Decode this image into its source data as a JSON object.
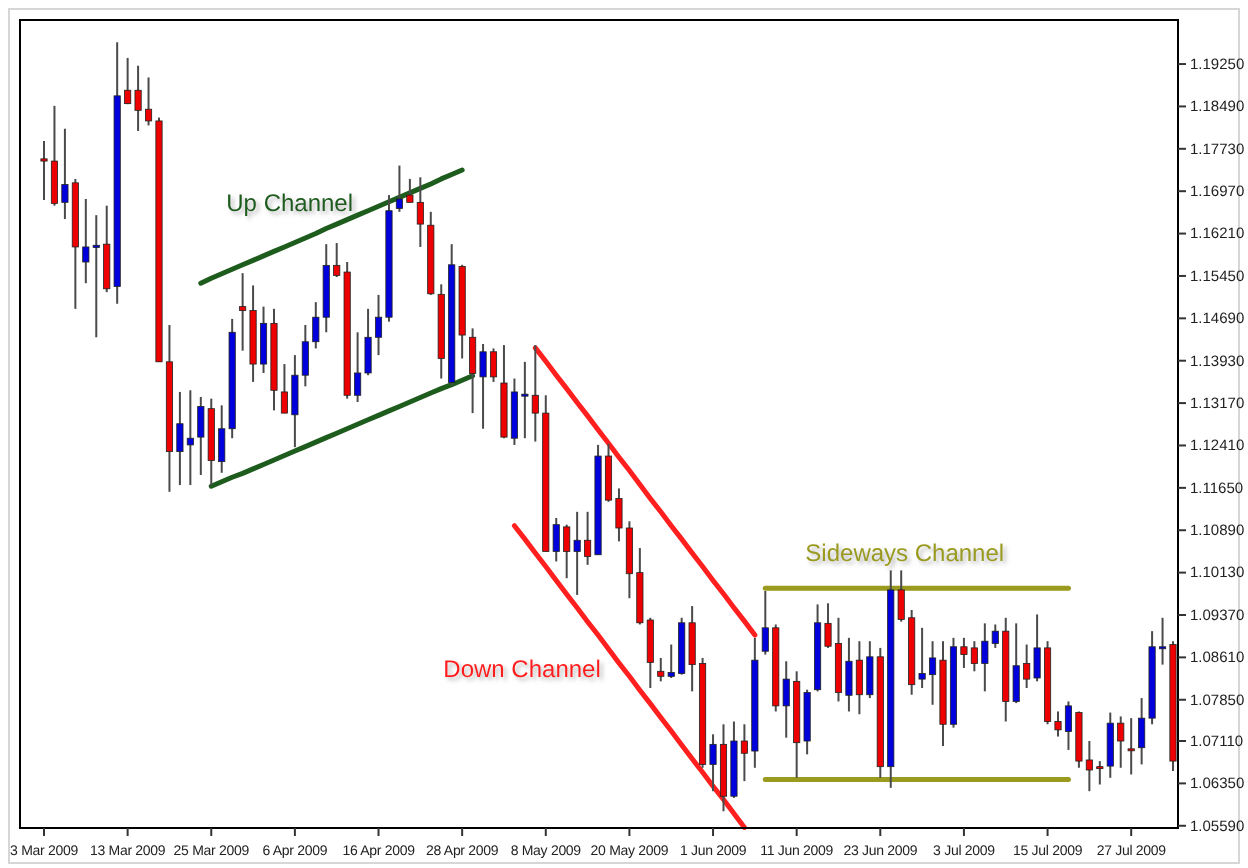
{
  "chart_data": {
    "type": "candlestick",
    "categories": [
      "3 Mar 2009",
      null,
      null,
      null,
      null,
      null,
      null,
      null,
      "13 Mar 2009",
      null,
      null,
      null,
      null,
      null,
      null,
      null,
      "25 Mar 2009",
      null,
      null,
      null,
      null,
      null,
      null,
      null,
      "6 Apr 2009",
      null,
      null,
      null,
      null,
      null,
      null,
      null,
      "16 Apr 2009",
      null,
      null,
      null,
      null,
      null,
      null,
      null,
      "28 Apr 2009",
      null,
      null,
      null,
      null,
      null,
      null,
      null,
      "8 May 2009",
      null,
      null,
      null,
      null,
      null,
      null,
      null,
      "20 May 2009",
      null,
      null,
      null,
      null,
      null,
      null,
      null,
      "1 Jun 2009",
      null,
      null,
      null,
      null,
      null,
      null,
      null,
      "11 Jun 2009",
      null,
      null,
      null,
      null,
      null,
      null,
      null,
      "23 Jun 2009",
      null,
      null,
      null,
      null,
      null,
      null,
      null,
      "3 Jul 2009",
      null,
      null,
      null,
      null,
      null,
      null,
      null,
      "15 Jul 2009",
      null,
      null,
      null,
      null,
      null,
      null,
      null,
      "27 Jul 2009",
      null,
      null,
      null,
      null
    ],
    "ylim": [
      1.0555,
      1.2004
    ],
    "yticks": [
      {
        "value": 1.0559,
        "label": "1.05590"
      },
      {
        "value": 1.0635,
        "label": "1.06350"
      },
      {
        "value": 1.0711,
        "label": "1.07110"
      },
      {
        "value": 1.0785,
        "label": "1.07850"
      },
      {
        "value": 1.0861,
        "label": "1.08610"
      },
      {
        "value": 1.0937,
        "label": "1.09370"
      },
      {
        "value": 1.1013,
        "label": "1.10130"
      },
      {
        "value": 1.1089,
        "label": "1.10890"
      },
      {
        "value": 1.1165,
        "label": "1.11650"
      },
      {
        "value": 1.1241,
        "label": "1.12410"
      },
      {
        "value": 1.1317,
        "label": "1.13170"
      },
      {
        "value": 1.1393,
        "label": "1.13930"
      },
      {
        "value": 1.1469,
        "label": "1.14690"
      },
      {
        "value": 1.1545,
        "label": "1.15450"
      },
      {
        "value": 1.1621,
        "label": "1.16210"
      },
      {
        "value": 1.1697,
        "label": "1.16970"
      },
      {
        "value": 1.1773,
        "label": "1.17730"
      },
      {
        "value": 1.1849,
        "label": "1.18490"
      },
      {
        "value": 1.1925,
        "label": "1.19250"
      }
    ],
    "series": [
      {
        "ohlc": [
          [
            1.1755,
            1.1787,
            1.1681,
            1.1751
          ],
          [
            1.1751,
            1.185,
            1.1671,
            1.1675
          ],
          [
            1.1677,
            1.1809,
            1.1647,
            1.1709
          ],
          [
            1.1712,
            1.1719,
            1.1486,
            1.1597
          ],
          [
            1.157,
            1.1683,
            1.1532,
            1.1597
          ],
          [
            1.1596,
            1.1654,
            1.1435,
            1.16
          ],
          [
            1.1602,
            1.1671,
            1.1516,
            1.1522
          ],
          [
            1.1526,
            1.1964,
            1.1495,
            1.1868
          ],
          [
            1.1878,
            1.1936,
            1.1853,
            1.1854
          ],
          [
            1.1878,
            1.1922,
            1.1805,
            1.1842
          ],
          [
            1.1844,
            1.1901,
            1.1815,
            1.1823
          ],
          [
            1.1823,
            1.1829,
            1.1391,
            1.1391
          ],
          [
            1.1391,
            1.1457,
            1.1158,
            1.123
          ],
          [
            1.123,
            1.1337,
            1.117,
            1.128
          ],
          [
            1.1242,
            1.134,
            1.117,
            1.1254
          ],
          [
            1.1256,
            1.1328,
            1.1188,
            1.1311
          ],
          [
            1.1307,
            1.1325,
            1.117,
            1.1214
          ],
          [
            1.1212,
            1.1313,
            1.1192,
            1.1271
          ],
          [
            1.1271,
            1.1468,
            1.1254,
            1.1444
          ],
          [
            1.149,
            1.155,
            1.1411,
            1.1483
          ],
          [
            1.1483,
            1.1528,
            1.1355,
            1.1387
          ],
          [
            1.1387,
            1.149,
            1.1371,
            1.146
          ],
          [
            1.146,
            1.1486,
            1.1304,
            1.134
          ],
          [
            1.1337,
            1.1387,
            1.1299,
            1.1299
          ],
          [
            1.1296,
            1.1403,
            1.1238,
            1.1367
          ],
          [
            1.1367,
            1.1457,
            1.1347,
            1.1427
          ],
          [
            1.1427,
            1.1498,
            1.1415,
            1.1471
          ],
          [
            1.1471,
            1.1602,
            1.1444,
            1.1564
          ],
          [
            1.1564,
            1.1604,
            1.1543,
            1.1546
          ],
          [
            1.1552,
            1.157,
            1.1325,
            1.1331
          ],
          [
            1.1331,
            1.1444,
            1.1319,
            1.1371
          ],
          [
            1.1371,
            1.1486,
            1.1367,
            1.1435
          ],
          [
            1.1435,
            1.1511,
            1.1403,
            1.1471
          ],
          [
            1.1471,
            1.169,
            1.1463,
            1.1662
          ],
          [
            1.1666,
            1.1743,
            1.166,
            1.1683
          ],
          [
            1.169,
            1.1719,
            1.1677,
            1.1677
          ],
          [
            1.1677,
            1.1722,
            1.1597,
            1.1638
          ],
          [
            1.1636,
            1.166,
            1.1511,
            1.1513
          ],
          [
            1.1512,
            1.153,
            1.1361,
            1.1397
          ],
          [
            1.1354,
            1.1602,
            1.1349,
            1.1565
          ],
          [
            1.1562,
            1.1565,
            1.1397,
            1.1439
          ],
          [
            1.1435,
            1.1451,
            1.1299,
            1.137
          ],
          [
            1.1364,
            1.1423,
            1.1271,
            1.1409
          ],
          [
            1.1409,
            1.1415,
            1.1355,
            1.1364
          ],
          [
            1.1353,
            1.1421,
            1.1254,
            1.1256
          ],
          [
            1.1254,
            1.1361,
            1.1242,
            1.1337
          ],
          [
            1.1331,
            1.1391,
            1.1254,
            1.1333
          ],
          [
            1.1331,
            1.1421,
            1.1248,
            1.1299
          ],
          [
            1.1299,
            1.1331,
            1.1051,
            1.1051
          ],
          [
            1.1051,
            1.1111,
            1.1033,
            1.1099
          ],
          [
            1.1095,
            1.1099,
            1.1003,
            1.1051
          ],
          [
            1.1051,
            1.1122,
            1.0973,
            1.1071
          ],
          [
            1.1071,
            1.1122,
            1.1027,
            1.1042
          ],
          [
            1.1045,
            1.1242,
            1.1045,
            1.1222
          ],
          [
            1.1222,
            1.1244,
            1.114,
            1.1143
          ],
          [
            1.1146,
            1.1164,
            1.1069,
            1.1093
          ],
          [
            1.1093,
            1.1105,
            1.0967,
            1.1011
          ],
          [
            1.1013,
            1.1057,
            1.092,
            1.0923
          ],
          [
            1.0928,
            1.0932,
            1.0806,
            1.0852
          ],
          [
            1.0836,
            1.086,
            1.0818,
            1.0827
          ],
          [
            1.0827,
            1.0884,
            1.0824,
            1.0834
          ],
          [
            1.0832,
            1.0932,
            1.083,
            1.0923
          ],
          [
            1.0923,
            1.0953,
            1.08,
            1.0848
          ],
          [
            1.085,
            1.086,
            1.0663,
            1.0669
          ],
          [
            1.0669,
            1.0723,
            1.0621,
            1.0705
          ],
          [
            1.0705,
            1.0741,
            1.0585,
            1.0612
          ],
          [
            1.0612,
            1.0746,
            1.0609,
            1.0711
          ],
          [
            1.0711,
            1.0741,
            1.0639,
            1.0689
          ],
          [
            1.0693,
            1.0896,
            1.0663,
            1.0856
          ],
          [
            1.0872,
            1.098,
            1.0866,
            1.0914
          ],
          [
            1.0914,
            1.092,
            1.0764,
            1.0774
          ],
          [
            1.0774,
            1.0854,
            1.0717,
            1.0822
          ],
          [
            1.0818,
            1.0836,
            1.0645,
            1.0708
          ],
          [
            1.0711,
            1.0803,
            1.0687,
            1.0798
          ],
          [
            1.0803,
            1.0956,
            1.08,
            1.0923
          ],
          [
            1.0922,
            1.0958,
            1.0878,
            1.0881
          ],
          [
            1.0886,
            1.0932,
            1.0782,
            1.0798
          ],
          [
            1.0793,
            1.0896,
            1.0764,
            1.0854
          ],
          [
            1.0856,
            1.089,
            1.0759,
            1.0794
          ],
          [
            1.0794,
            1.089,
            1.0788,
            1.0862
          ],
          [
            1.0862,
            1.0878,
            1.0645,
            1.0665
          ],
          [
            1.0665,
            1.1017,
            1.0627,
            1.0982
          ],
          [
            1.0982,
            1.1017,
            1.0925,
            1.0929
          ],
          [
            1.0932,
            1.0946,
            1.0794,
            1.0812
          ],
          [
            1.0822,
            1.0914,
            1.0806,
            1.0832
          ],
          [
            1.083,
            1.089,
            1.0776,
            1.086
          ],
          [
            1.0856,
            1.089,
            1.0702,
            1.0741
          ],
          [
            1.0741,
            1.0896,
            1.0735,
            1.088
          ],
          [
            1.088,
            1.0896,
            1.0842,
            1.0866
          ],
          [
            1.0878,
            1.089,
            1.0836,
            1.085
          ],
          [
            1.085,
            1.0922,
            1.08,
            1.089
          ],
          [
            1.0886,
            1.092,
            1.0878,
            1.0908
          ],
          [
            1.0908,
            1.0932,
            1.0746,
            1.0782
          ],
          [
            1.0782,
            1.0922,
            1.0779,
            1.0846
          ],
          [
            1.085,
            1.0884,
            1.0806,
            1.0822
          ],
          [
            1.0824,
            1.0938,
            1.0818,
            1.0878
          ],
          [
            1.0878,
            1.089,
            1.0741,
            1.0746
          ],
          [
            1.0746,
            1.0764,
            1.0719,
            1.0731
          ],
          [
            1.0728,
            1.0782,
            1.0695,
            1.0774
          ],
          [
            1.0762,
            1.0764,
            1.0663,
            1.0675
          ],
          [
            1.0677,
            1.0711,
            1.0621,
            1.0659
          ],
          [
            1.0665,
            1.0675,
            1.0633,
            1.0663
          ],
          [
            1.0666,
            1.0762,
            1.0645,
            1.0743
          ],
          [
            1.0743,
            1.0755,
            1.0663,
            1.0711
          ],
          [
            1.0697,
            1.0752,
            1.0651,
            1.0695
          ],
          [
            1.0699,
            1.0788,
            1.0669,
            1.0752
          ],
          [
            1.0752,
            1.0908,
            1.0741,
            1.088
          ],
          [
            1.0878,
            1.0932,
            1.0848,
            1.088
          ],
          [
            1.0884,
            1.089,
            1.0657,
            1.0675
          ]
        ],
        "colors": [
          "#ee0000",
          "#ee0000",
          "#0000dd",
          "#ee0000",
          "#0000dd",
          "#0000dd",
          "#ee0000",
          "#0000dd",
          "#ee0000",
          "#ee0000",
          "#ee0000",
          "#ee0000",
          "#ee0000",
          "#0000dd",
          "#0000dd",
          "#0000dd",
          "#ee0000",
          "#0000dd",
          "#0000dd",
          "#ee0000",
          "#ee0000",
          "#0000dd",
          "#ee0000",
          "#ee0000",
          "#0000dd",
          "#0000dd",
          "#0000dd",
          "#0000dd",
          "#ee0000",
          "#ee0000",
          "#0000dd",
          "#0000dd",
          "#0000dd",
          "#0000dd",
          "#0000dd",
          "#ee0000",
          "#ee0000",
          "#ee0000",
          "#ee0000",
          "#0000dd",
          "#ee0000",
          "#ee0000",
          "#0000dd",
          "#ee0000",
          "#ee0000",
          "#0000dd",
          "#0000dd",
          "#ee0000",
          "#ee0000",
          "#0000dd",
          "#ee0000",
          "#0000dd",
          "#ee0000",
          "#0000dd",
          "#ee0000",
          "#ee0000",
          "#ee0000",
          "#ee0000",
          "#ee0000",
          "#ee0000",
          "#0000dd",
          "#0000dd",
          "#ee0000",
          "#ee0000",
          "#0000dd",
          "#ee0000",
          "#0000dd",
          "#ee0000",
          "#0000dd",
          "#0000dd",
          "#ee0000",
          "#0000dd",
          "#ee0000",
          "#0000dd",
          "#0000dd",
          "#ee0000",
          "#ee0000",
          "#0000dd",
          "#ee0000",
          "#0000dd",
          "#ee0000",
          "#0000dd",
          "#ee0000",
          "#ee0000",
          "#0000dd",
          "#0000dd",
          "#ee0000",
          "#0000dd",
          "#ee0000",
          "#ee0000",
          "#0000dd",
          "#0000dd",
          "#ee0000",
          "#0000dd",
          "#ee0000",
          "#0000dd",
          "#ee0000",
          "#ee0000",
          "#0000dd",
          "#ee0000",
          "#ee0000",
          "#ee0000",
          "#0000dd",
          "#ee0000",
          "#ee0000",
          "#0000dd",
          "#0000dd",
          "#0000dd",
          "#ee0000"
        ]
      },
      {
        "type": "line",
        "name": "Up Channel",
        "color": "#1e5c1e",
        "values": [
          null,
          null,
          null,
          null,
          null,
          null,
          null,
          null,
          null,
          null,
          null,
          null,
          null,
          null,
          null,
          1.1532,
          1.1541,
          1.1549,
          1.1557,
          1.1565,
          1.1573,
          1.1581,
          1.1589,
          1.1597,
          1.1605,
          1.1613,
          1.1621,
          1.163,
          1.1638,
          1.1646,
          1.1654,
          1.1662,
          1.167,
          1.1678,
          1.1686,
          1.1694,
          1.1702,
          1.171,
          1.1719,
          1.1727,
          1.1735,
          null,
          null,
          null,
          null,
          null,
          null,
          null,
          null,
          null,
          null,
          null,
          null,
          null,
          null,
          null,
          null,
          null,
          null,
          null,
          null,
          null,
          null,
          null,
          null,
          null,
          null,
          null,
          null,
          null,
          null,
          null,
          null,
          null,
          null,
          null,
          null,
          null,
          null,
          null,
          null,
          null,
          null,
          null,
          null,
          null,
          null,
          null,
          null,
          null,
          null,
          null,
          null,
          null,
          null,
          null,
          null,
          null,
          null,
          null,
          null,
          null,
          null,
          null,
          null,
          null,
          null,
          null,
          null
        ]
      },
      {
        "type": "line",
        "color": "#1e5c1e",
        "values": [
          null,
          null,
          null,
          null,
          null,
          null,
          null,
          null,
          null,
          null,
          null,
          null,
          null,
          null,
          null,
          null,
          1.1168,
          1.1176,
          1.1184,
          1.1191,
          1.1199,
          1.1207,
          1.1215,
          1.1223,
          1.1231,
          1.1239,
          1.1247,
          1.1255,
          1.1263,
          1.1271,
          1.1279,
          1.1287,
          1.1295,
          1.1303,
          1.1311,
          1.1319,
          1.1327,
          1.1335,
          1.1343,
          1.135,
          1.1358,
          1.1366,
          null,
          null,
          null,
          null,
          null,
          null,
          null,
          null,
          null,
          null,
          null,
          null,
          null,
          null,
          null,
          null,
          null,
          null,
          null,
          null,
          null,
          null,
          null,
          null,
          null,
          null,
          null,
          null,
          null,
          null,
          null,
          null,
          null,
          null,
          null,
          null,
          null,
          null,
          null,
          null,
          null,
          null,
          null,
          null,
          null,
          null,
          null,
          null,
          null,
          null,
          null,
          null,
          null,
          null,
          null,
          null,
          null,
          null,
          null,
          null,
          null,
          null,
          null,
          null,
          null,
          null,
          null
        ]
      },
      {
        "type": "line",
        "color": "#ff1f1f",
        "values": [
          null,
          null,
          null,
          null,
          null,
          null,
          null,
          null,
          null,
          null,
          null,
          null,
          null,
          null,
          null,
          null,
          null,
          null,
          null,
          null,
          null,
          null,
          null,
          null,
          null,
          null,
          null,
          null,
          null,
          null,
          null,
          null,
          null,
          null,
          null,
          null,
          null,
          null,
          null,
          null,
          null,
          null,
          null,
          null,
          null,
          null,
          null,
          1.1416,
          1.1392,
          1.1367,
          1.1343,
          1.1318,
          1.1294,
          1.1269,
          1.1245,
          1.122,
          1.1196,
          1.1171,
          1.1146,
          1.1122,
          1.1097,
          1.1073,
          1.1048,
          1.1024,
          1.0999,
          1.0975,
          1.095,
          1.0926,
          1.0901,
          null,
          null,
          null,
          null,
          null,
          null,
          null,
          null,
          null,
          null,
          null,
          null,
          null,
          null,
          null,
          null,
          null,
          null,
          null,
          null,
          null,
          null,
          null,
          null,
          null,
          null,
          null,
          null,
          null,
          null,
          null,
          null,
          null,
          null,
          null,
          null,
          null,
          null,
          null,
          null
        ]
      },
      {
        "type": "line",
        "name": "Down Channel",
        "color": "#ff1f1f",
        "values": [
          null,
          null,
          null,
          null,
          null,
          null,
          null,
          null,
          null,
          null,
          null,
          null,
          null,
          null,
          null,
          null,
          null,
          null,
          null,
          null,
          null,
          null,
          null,
          null,
          null,
          null,
          null,
          null,
          null,
          null,
          null,
          null,
          null,
          null,
          null,
          null,
          null,
          null,
          null,
          null,
          null,
          null,
          null,
          null,
          null,
          1.1097,
          1.1073,
          1.1048,
          1.1024,
          1.0999,
          1.0974,
          1.095,
          1.0925,
          1.0901,
          1.0876,
          1.0851,
          1.0827,
          1.0802,
          1.0778,
          1.0753,
          1.0729,
          1.0704,
          1.0679,
          1.0655,
          1.063,
          1.0606,
          1.0581,
          1.0556,
          null,
          null,
          null,
          null,
          null,
          null,
          null,
          null,
          null,
          null,
          null,
          null,
          null,
          null,
          null,
          null,
          null,
          null,
          null,
          null,
          null,
          null,
          null,
          null,
          null,
          null,
          null,
          null,
          null,
          null,
          null,
          null,
          null,
          null,
          null,
          null,
          null,
          null,
          null,
          null,
          null
        ]
      },
      {
        "type": "line",
        "name": "Sideways Channel",
        "color": "#9a9a1e",
        "values": [
          null,
          null,
          null,
          null,
          null,
          null,
          null,
          null,
          null,
          null,
          null,
          null,
          null,
          null,
          null,
          null,
          null,
          null,
          null,
          null,
          null,
          null,
          null,
          null,
          null,
          null,
          null,
          null,
          null,
          null,
          null,
          null,
          null,
          null,
          null,
          null,
          null,
          null,
          null,
          null,
          null,
          null,
          null,
          null,
          null,
          null,
          null,
          null,
          null,
          null,
          null,
          null,
          null,
          null,
          null,
          null,
          null,
          null,
          null,
          null,
          null,
          null,
          null,
          null,
          null,
          null,
          null,
          null,
          null,
          1.0985,
          1.0985,
          1.0985,
          1.0985,
          1.0985,
          1.0985,
          1.0985,
          1.0985,
          1.0985,
          1.0985,
          1.0985,
          1.0985,
          1.0985,
          1.0985,
          1.0985,
          1.0985,
          1.0985,
          1.0985,
          1.0985,
          1.0985,
          1.0985,
          1.0985,
          1.0985,
          1.0985,
          1.0985,
          1.0985,
          1.0985,
          1.0985,
          1.0985,
          1.0985,
          null,
          null,
          null,
          null,
          null,
          null,
          null,
          null,
          null,
          null
        ]
      },
      {
        "type": "line",
        "color": "#9a9a1e",
        "values": [
          null,
          null,
          null,
          null,
          null,
          null,
          null,
          null,
          null,
          null,
          null,
          null,
          null,
          null,
          null,
          null,
          null,
          null,
          null,
          null,
          null,
          null,
          null,
          null,
          null,
          null,
          null,
          null,
          null,
          null,
          null,
          null,
          null,
          null,
          null,
          null,
          null,
          null,
          null,
          null,
          null,
          null,
          null,
          null,
          null,
          null,
          null,
          null,
          null,
          null,
          null,
          null,
          null,
          null,
          null,
          null,
          null,
          null,
          null,
          null,
          null,
          null,
          null,
          null,
          null,
          null,
          null,
          null,
          null,
          1.0642,
          1.0642,
          1.0642,
          1.0642,
          1.0642,
          1.0642,
          1.0642,
          1.0642,
          1.0642,
          1.0642,
          1.0642,
          1.0642,
          1.0642,
          1.0642,
          1.0642,
          1.0642,
          1.0642,
          1.0642,
          1.0642,
          1.0642,
          1.0642,
          1.0642,
          1.0642,
          1.0642,
          1.0642,
          1.0642,
          1.0642,
          1.0642,
          1.0642,
          1.0642,
          null,
          null,
          null,
          null,
          null,
          null,
          null,
          null,
          null,
          null
        ]
      }
    ]
  }
}
